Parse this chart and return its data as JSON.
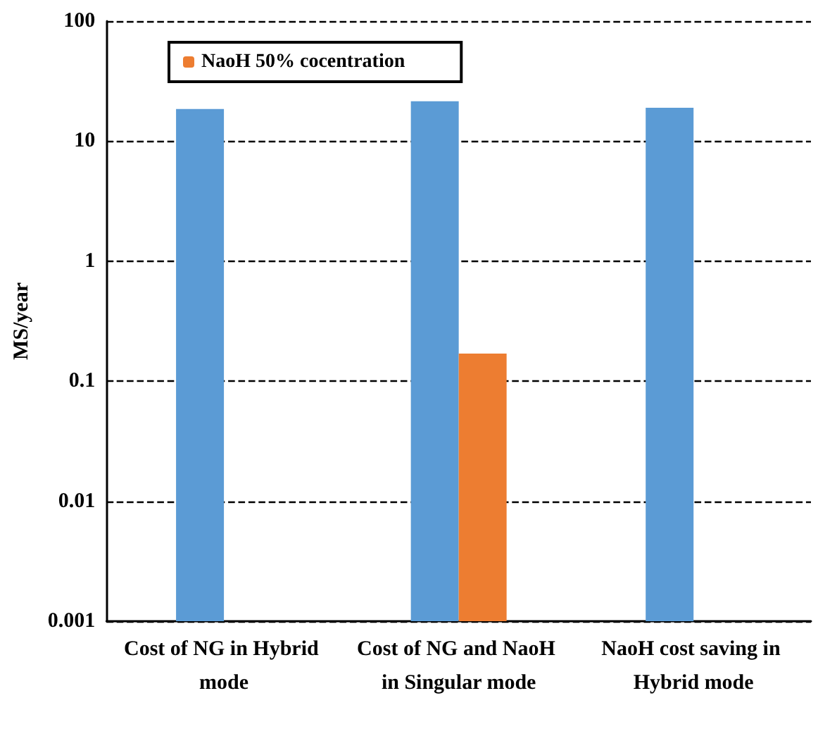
{
  "chart_data": {
    "type": "bar",
    "ylabel": "MS/year",
    "categories": [
      "Cost of NG in Hybrid mode",
      "Cost of NG and NaoH in Singular mode",
      "NaoH cost saving in Hybrid mode"
    ],
    "series": [
      {
        "color": "#5b9bd5",
        "values": [
          18.5,
          21.5,
          19
        ]
      },
      {
        "name": "NaoH 50% cocentration",
        "color": "#ed7d31",
        "values": [
          null,
          0.17,
          null
        ]
      }
    ],
    "log": "y",
    "ylim": [
      0.001,
      100
    ],
    "yticks": [
      0.001,
      0.01,
      0.1,
      1,
      10,
      100
    ],
    "grid": "y",
    "legend": "top left"
  }
}
